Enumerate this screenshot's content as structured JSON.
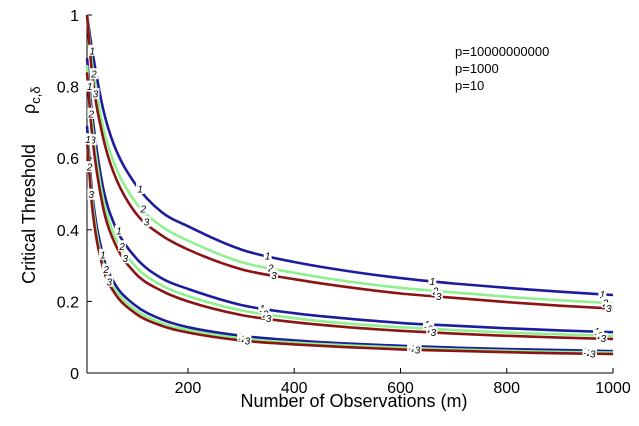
{
  "chart_data": {
    "type": "line",
    "xlabel": "Number of Observations (m)",
    "ylabel": "Critical Threshold",
    "ylabel_symbol": "ρ",
    "ylabel_sub": "c,δ",
    "xlim": [
      10,
      1000
    ],
    "ylim": [
      0,
      1
    ],
    "x_ticks": [
      "200",
      "400",
      "600",
      "800",
      "1000"
    ],
    "y_ticks": [
      "0",
      "0.2",
      "0.4",
      "0.6",
      "0.8",
      "1"
    ],
    "grid": false,
    "legend_position": "top-right",
    "legend": [
      "p=10000000000",
      "p=1000",
      "p=10"
    ],
    "x": [
      10,
      20,
      40,
      60,
      100,
      150,
      200,
      300,
      400,
      500,
      600,
      700,
      800,
      900,
      1000
    ],
    "contour_labels": [
      "1",
      "2",
      "3"
    ],
    "series": [
      {
        "group": "upper",
        "label": "1",
        "color": "#1c1c9c",
        "values": [
          1.0,
          0.9,
          0.74,
          0.64,
          0.53,
          0.45,
          0.41,
          0.345,
          0.31,
          0.285,
          0.265,
          0.25,
          0.238,
          0.227,
          0.218
        ]
      },
      {
        "group": "upper",
        "label": "2",
        "color": "#8ef08e",
        "values": [
          1.0,
          0.86,
          0.69,
          0.59,
          0.48,
          0.41,
          0.37,
          0.31,
          0.28,
          0.256,
          0.238,
          0.225,
          0.213,
          0.203,
          0.195
        ]
      },
      {
        "group": "upper",
        "label": "3",
        "color": "#8c1414",
        "values": [
          1.0,
          0.83,
          0.66,
          0.56,
          0.45,
          0.385,
          0.345,
          0.29,
          0.262,
          0.24,
          0.222,
          0.21,
          0.198,
          0.188,
          0.18
        ]
      },
      {
        "group": "middle",
        "label": "1",
        "color": "#1c1c9c",
        "values": [
          0.88,
          0.72,
          0.52,
          0.42,
          0.325,
          0.265,
          0.235,
          0.19,
          0.167,
          0.152,
          0.14,
          0.132,
          0.125,
          0.119,
          0.114
        ]
      },
      {
        "group": "middle",
        "label": "2",
        "color": "#8ef08e",
        "values": [
          0.86,
          0.69,
          0.49,
          0.39,
          0.3,
          0.245,
          0.215,
          0.175,
          0.153,
          0.138,
          0.128,
          0.12,
          0.113,
          0.108,
          0.103
        ]
      },
      {
        "group": "middle",
        "label": "3",
        "color": "#8c1414",
        "values": [
          0.84,
          0.66,
          0.465,
          0.37,
          0.28,
          0.23,
          0.2,
          0.162,
          0.142,
          0.128,
          0.118,
          0.11,
          0.104,
          0.099,
          0.095
        ]
      },
      {
        "group": "lower",
        "label": "1",
        "color": "#1c1c9c",
        "values": [
          0.69,
          0.5,
          0.33,
          0.255,
          0.19,
          0.15,
          0.128,
          0.104,
          0.091,
          0.082,
          0.076,
          0.071,
          0.067,
          0.064,
          0.061
        ]
      },
      {
        "group": "lower",
        "label": "2",
        "color": "#8ef08e",
        "values": [
          0.67,
          0.48,
          0.31,
          0.24,
          0.178,
          0.14,
          0.12,
          0.097,
          0.085,
          0.077,
          0.071,
          0.066,
          0.062,
          0.059,
          0.057
        ]
      },
      {
        "group": "lower",
        "label": "3",
        "color": "#8c1414",
        "values": [
          0.65,
          0.46,
          0.295,
          0.228,
          0.168,
          0.132,
          0.113,
          0.091,
          0.08,
          0.072,
          0.066,
          0.062,
          0.058,
          0.055,
          0.053
        ]
      }
    ]
  }
}
